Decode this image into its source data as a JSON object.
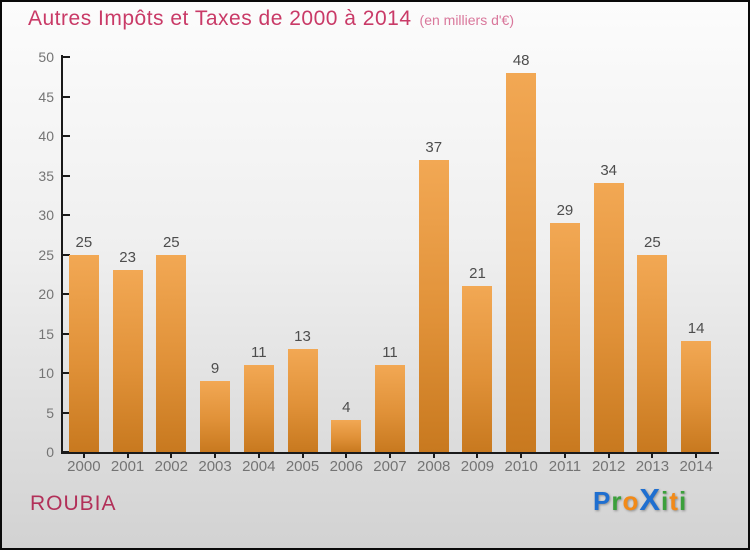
{
  "title": {
    "text": "Autres Impôts et Taxes de 2000 à 2014",
    "subtitle": "(en milliers d'€)",
    "color": "#c93a67",
    "subtitle_color": "#d9779b"
  },
  "chart_data": {
    "type": "bar",
    "title": "Autres Impôts et Taxes de 2000 à 2014",
    "subtitle": "(en milliers d'€)",
    "categories": [
      "2000",
      "2001",
      "2002",
      "2003",
      "2004",
      "2005",
      "2006",
      "2007",
      "2008",
      "2009",
      "2010",
      "2011",
      "2012",
      "2013",
      "2014"
    ],
    "values": [
      25,
      23,
      25,
      9,
      11,
      13,
      4,
      11,
      37,
      21,
      48,
      29,
      34,
      25,
      14
    ],
    "xlabel": "",
    "ylabel": "",
    "ylim": [
      0,
      50
    ],
    "ytick_step": 5,
    "grid": false,
    "legend": "none",
    "bar_gradient": {
      "top": "#f2a854",
      "mid": "#e09138",
      "bottom": "#c8791f"
    },
    "value_label_color": "#4d4d4d",
    "axis_label_color": "#747474",
    "axis_line_color": "#1a1a1a"
  },
  "footer": {
    "location": "ROUBIA",
    "location_color": "#b23059",
    "logo": {
      "name": "Proxiti",
      "letters": [
        {
          "char": "P",
          "color": "#1f6fd0",
          "big": false
        },
        {
          "char": "r",
          "color": "#3ba03b",
          "big": false
        },
        {
          "char": "o",
          "color": "#f28a18",
          "big": false
        },
        {
          "char": "X",
          "color": "#1f6fd0",
          "big": true
        },
        {
          "char": "i",
          "color": "#3ba03b",
          "big": false
        },
        {
          "char": "t",
          "color": "#f28a18",
          "big": false
        },
        {
          "char": "i",
          "color": "#3ba03b",
          "big": false
        }
      ]
    }
  }
}
